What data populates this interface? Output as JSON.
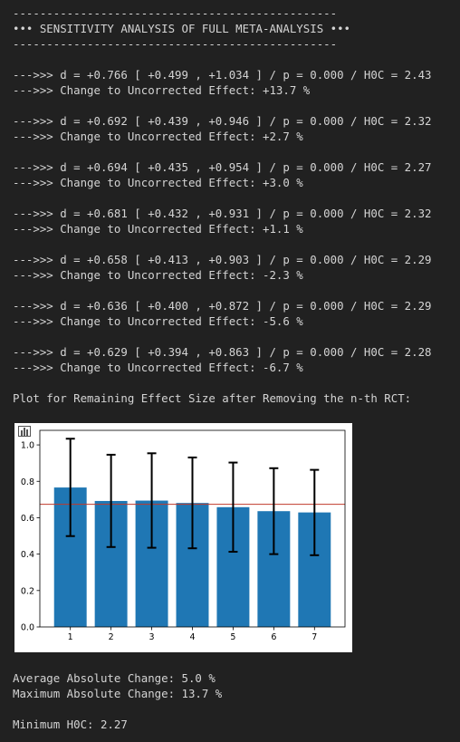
{
  "output": {
    "divider": "------------------------------------------------",
    "header": "••• SENSITIVITY ANALYSIS OF FULL META-ANALYSIS •••",
    "results": [
      {
        "line1": "--->>> d = +0.766 [ +0.499 , +1.034 ] / p = 0.000 / H0C = 2.43",
        "line2": "--->>> Change to Uncorrected Effect: +13.7 %"
      },
      {
        "line1": "--->>> d = +0.692 [ +0.439 , +0.946 ] / p = 0.000 / H0C = 2.32",
        "line2": "--->>> Change to Uncorrected Effect: +2.7 %"
      },
      {
        "line1": "--->>> d = +0.694 [ +0.435 , +0.954 ] / p = 0.000 / H0C = 2.27",
        "line2": "--->>> Change to Uncorrected Effect: +3.0 %"
      },
      {
        "line1": "--->>> d = +0.681 [ +0.432 , +0.931 ] / p = 0.000 / H0C = 2.32",
        "line2": "--->>> Change to Uncorrected Effect: +1.1 %"
      },
      {
        "line1": "--->>> d = +0.658 [ +0.413 , +0.903 ] / p = 0.000 / H0C = 2.29",
        "line2": "--->>> Change to Uncorrected Effect: -2.3 %"
      },
      {
        "line1": "--->>> d = +0.636 [ +0.400 , +0.872 ] / p = 0.000 / H0C = 2.29",
        "line2": "--->>> Change to Uncorrected Effect: -5.6 %"
      },
      {
        "line1": "--->>> d = +0.629 [ +0.394 , +0.863 ] / p = 0.000 / H0C = 2.28",
        "line2": "--->>> Change to Uncorrected Effect: -6.7 %"
      }
    ],
    "plot_caption": "Plot for Remaining Effect Size after Removing the n-th RCT:",
    "avg_change": "Average Absolute Change: 5.0 %",
    "max_change": "Maximum Absolute Change: 13.7 %",
    "min_h0c": "Minimum H0C: 2.27"
  },
  "chart_icon": "bar-chart-icon",
  "chart_data": {
    "type": "bar",
    "categories": [
      "1",
      "2",
      "3",
      "4",
      "5",
      "6",
      "7"
    ],
    "values": [
      0.766,
      0.692,
      0.694,
      0.681,
      0.658,
      0.636,
      0.629
    ],
    "ci_low": [
      0.499,
      0.439,
      0.435,
      0.432,
      0.413,
      0.4,
      0.394
    ],
    "ci_high": [
      1.034,
      0.946,
      0.954,
      0.931,
      0.903,
      0.872,
      0.863
    ],
    "reference_line": 0.674,
    "yticks": [
      "0.0",
      "0.2",
      "0.4",
      "0.6",
      "0.8",
      "1.0"
    ],
    "ylim": [
      0,
      1.08
    ],
    "title": "",
    "xlabel": "",
    "ylabel": "",
    "bar_color": "#1f77b4",
    "reference_color": "#c0392b",
    "error_color": "#000000"
  }
}
